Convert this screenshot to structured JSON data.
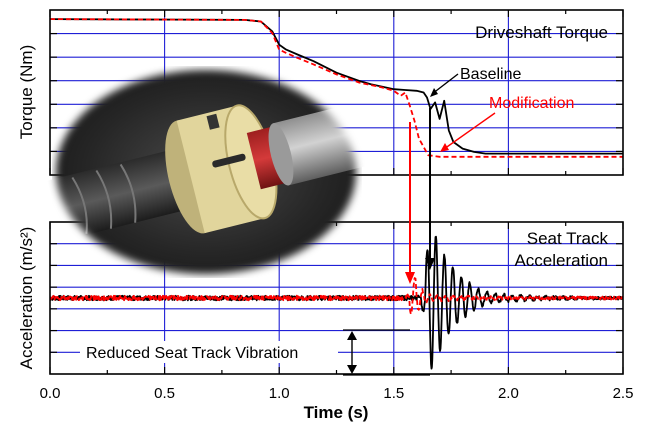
{
  "chart_data": [
    {
      "type": "line",
      "panel": "top",
      "title": "Driveshaft Torque",
      "ylabel": "Torque (Nm)",
      "xlabel": "",
      "xlim": [
        0,
        2.5
      ],
      "ylim": [
        0,
        1
      ],
      "grid": true,
      "series": [
        {
          "name": "Baseline",
          "color": "#000000",
          "x": [
            0,
            0.85,
            0.92,
            0.97,
            1.0,
            1.03,
            1.08,
            1.15,
            1.25,
            1.35,
            1.4,
            1.5,
            1.55,
            1.6,
            1.63,
            1.645,
            1.66,
            1.68,
            1.7,
            1.72,
            1.74,
            1.76,
            1.8,
            1.85,
            1.9,
            2.0,
            2.2,
            2.5
          ],
          "values": [
            0.945,
            0.94,
            0.93,
            0.87,
            0.79,
            0.76,
            0.73,
            0.69,
            0.62,
            0.57,
            0.55,
            0.52,
            0.515,
            0.51,
            0.5,
            0.47,
            0.4,
            0.44,
            0.34,
            0.45,
            0.27,
            0.2,
            0.16,
            0.14,
            0.13,
            0.13,
            0.13,
            0.13
          ]
        },
        {
          "name": "Modification",
          "color": "#ff0000",
          "x": [
            0,
            0.85,
            0.92,
            0.97,
            1.0,
            1.03,
            1.08,
            1.15,
            1.25,
            1.35,
            1.45,
            1.5,
            1.53,
            1.55,
            1.57,
            1.59,
            1.61,
            1.63,
            1.65,
            1.7,
            1.8,
            2.0,
            2.5
          ],
          "values": [
            0.945,
            0.94,
            0.93,
            0.86,
            0.76,
            0.74,
            0.71,
            0.67,
            0.61,
            0.56,
            0.53,
            0.51,
            0.48,
            0.5,
            0.42,
            0.33,
            0.22,
            0.17,
            0.12,
            0.11,
            0.11,
            0.11,
            0.11
          ]
        }
      ]
    },
    {
      "type": "line",
      "panel": "bottom",
      "title": "Seat Track Acceleration",
      "ylabel": "Acceleration (m/s²)",
      "xlabel": "Time (s)",
      "xlim": [
        0,
        2.5
      ],
      "xticks": [
        "0.0",
        "0.5",
        "1.0",
        "1.5",
        "2.0",
        "2.5"
      ],
      "ylim": [
        0,
        1
      ],
      "grid": true,
      "series": [
        {
          "name": "Baseline",
          "color": "#000000",
          "note": "noise around 0.5 before 1.6 s; ringing decays from ~1.62 s to ~1.95 s",
          "onset": 1.6,
          "amplitudes": [
            0.015,
            0.09,
            0.32,
            0.46,
            0.4,
            0.34,
            0.28,
            0.24,
            0.2,
            0.17,
            0.14,
            0.12,
            0.1,
            0.08,
            0.06,
            0.05,
            0.04,
            0.03
          ]
        },
        {
          "name": "Modification",
          "color": "#ff0000",
          "note": "noise around 0.5; small burst near 1.55–1.7 s",
          "onset": 1.55,
          "amplitudes": [
            0.015,
            0.1,
            0.14,
            0.08,
            0.05,
            0.03,
            0.02
          ]
        }
      ]
    }
  ],
  "annotations": {
    "baseline_label": "Baseline",
    "modification_label": "Modification",
    "reduced_vibration": "Reduced Seat Track Vibration",
    "top_panel_title": "Driveshaft Torque",
    "bottom_panel_title_line1": "Seat Track",
    "bottom_panel_title_line2": "Acceleration"
  },
  "colors": {
    "grid": "#1f1fd6",
    "baseline": "#000000",
    "modification": "#ff0000"
  },
  "photo": {
    "icon": "torsional-damper-photo"
  }
}
